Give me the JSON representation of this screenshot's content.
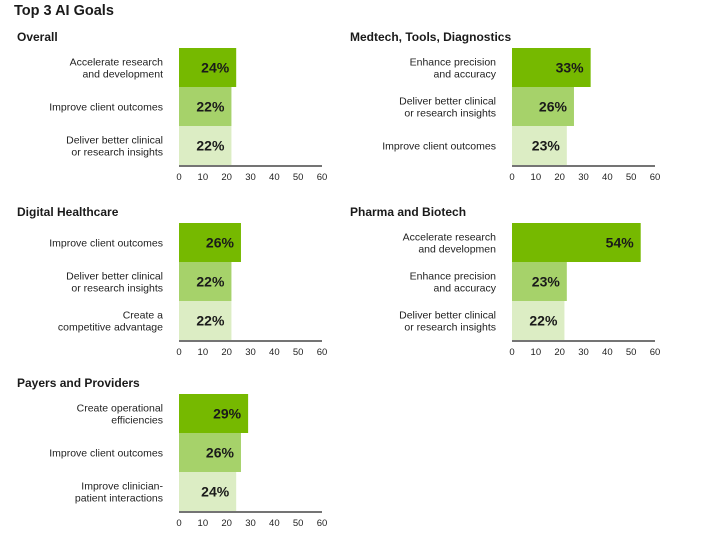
{
  "page": {
    "title": "Top 3 AI Goals"
  },
  "colors": [
    "#76b900",
    "#a6d26a",
    "#dcedc4"
  ],
  "chart_data": [
    {
      "type": "bar",
      "orientation": "horizontal",
      "title": "Overall",
      "categories": [
        [
          "Accelerate research",
          "and development"
        ],
        [
          "Improve client outcomes"
        ],
        [
          "Deliver better clinical",
          "or research insights"
        ]
      ],
      "values": [
        24,
        22,
        22
      ],
      "value_labels": [
        "24%",
        "22%",
        "22%"
      ],
      "xlim": [
        0,
        60
      ],
      "xticks": [
        0,
        10,
        20,
        30,
        40,
        50,
        60
      ]
    },
    {
      "type": "bar",
      "orientation": "horizontal",
      "title": "Medtech, Tools, Diagnostics",
      "categories": [
        [
          "Enhance precision",
          "and accuracy"
        ],
        [
          "Deliver better clinical",
          "or research insights"
        ],
        [
          "Improve client outcomes"
        ]
      ],
      "values": [
        33,
        26,
        23
      ],
      "value_labels": [
        "33%",
        "26%",
        "23%"
      ],
      "xlim": [
        0,
        60
      ],
      "xticks": [
        0,
        10,
        20,
        30,
        40,
        50,
        60
      ]
    },
    {
      "type": "bar",
      "orientation": "horizontal",
      "title": "Digital Healthcare",
      "categories": [
        [
          "Improve client outcomes"
        ],
        [
          "Deliver better clinical",
          "or research insights"
        ],
        [
          "Create a",
          "competitive advantage"
        ]
      ],
      "values": [
        26,
        22,
        22
      ],
      "value_labels": [
        "26%",
        "22%",
        "22%"
      ],
      "xlim": [
        0,
        60
      ],
      "xticks": [
        0,
        10,
        20,
        30,
        40,
        50,
        60
      ]
    },
    {
      "type": "bar",
      "orientation": "horizontal",
      "title": "Pharma and Biotech",
      "categories": [
        [
          "Accelerate research",
          "and developmen"
        ],
        [
          "Enhance precision",
          "and accuracy"
        ],
        [
          "Deliver better clinical",
          "or research insights"
        ]
      ],
      "values": [
        54,
        23,
        22
      ],
      "value_labels": [
        "54%",
        "23%",
        "22%"
      ],
      "xlim": [
        0,
        60
      ],
      "xticks": [
        0,
        10,
        20,
        30,
        40,
        50,
        60
      ]
    },
    {
      "type": "bar",
      "orientation": "horizontal",
      "title": "Payers and Providers",
      "categories": [
        [
          "Create operational",
          "efficiencies"
        ],
        [
          "Improve client outcomes"
        ],
        [
          "Improve clinician-",
          "patient interactions"
        ]
      ],
      "values": [
        29,
        26,
        24
      ],
      "value_labels": [
        "29%",
        "26%",
        "24%"
      ],
      "xlim": [
        0,
        60
      ],
      "xticks": [
        0,
        10,
        20,
        30,
        40,
        50,
        60
      ]
    }
  ]
}
